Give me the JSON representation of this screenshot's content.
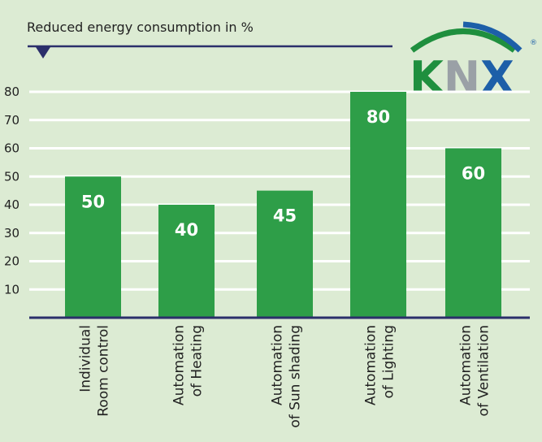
{
  "chart_data": {
    "type": "bar",
    "title": "Reduced energy consumption in %",
    "categories": [
      [
        "Individual",
        "Room control"
      ],
      [
        "Automation",
        "of Heating"
      ],
      [
        "Automation",
        "of Sun shading"
      ],
      [
        "Automation",
        "of Lighting"
      ],
      [
        "Automation",
        "of Ventilation"
      ]
    ],
    "values": [
      50,
      40,
      45,
      80,
      60
    ],
    "data_labels": [
      "50",
      "40",
      "45",
      "80",
      "60"
    ],
    "yticks": [
      10,
      20,
      30,
      40,
      50,
      60,
      70,
      80
    ],
    "ylim": [
      0,
      80
    ],
    "grid": true,
    "colors": {
      "bar": "#2e9e48",
      "axis": "#2b2f6b",
      "grid": "#ffffff",
      "background": "#dcebd3"
    }
  },
  "logo": {
    "text": "KNX",
    "registered": "®",
    "colors": {
      "k": "#1f8f3e",
      "n": "#9aa0a6",
      "x": "#1d5fa8"
    }
  }
}
